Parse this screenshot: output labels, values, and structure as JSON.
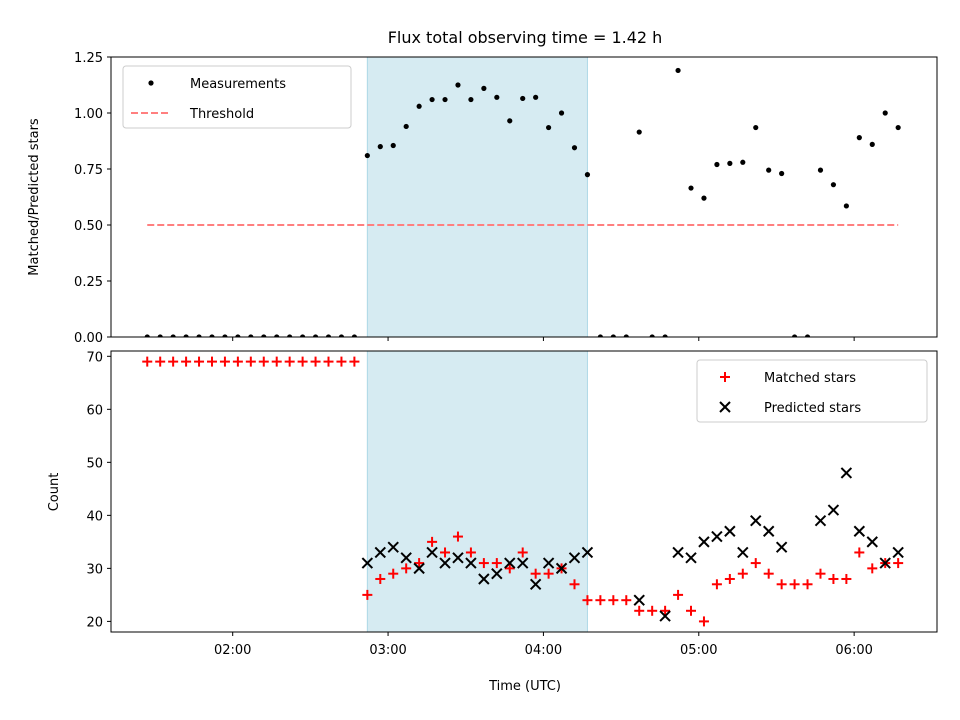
{
  "chart_data": [
    {
      "type": "scatter",
      "title": "Flux total observing time = 1.42 h",
      "xlabel": "",
      "ylabel": "Matched/Predicted stars",
      "xlim": [
        "01:13",
        "06:32"
      ],
      "ylim": [
        0,
        1.25
      ],
      "yticks": [
        0,
        0.25,
        0.5,
        0.75,
        1.0,
        1.25
      ],
      "ytick_labels": [
        "0.00",
        "0.25",
        "0.50",
        "0.75",
        "1.00",
        "1.25"
      ],
      "xticks": [
        "02:00",
        "03:00",
        "04:00",
        "05:00",
        "06:00"
      ],
      "shaded_region": {
        "start": "02:52",
        "end": "04:17",
        "color": "#add8e6"
      },
      "legend": {
        "position": "upper left",
        "entries": [
          "Measurements",
          "Threshold"
        ]
      },
      "series": [
        {
          "name": "Measurements",
          "marker": "dot",
          "color": "#000000",
          "x": [
            "01:27",
            "01:32",
            "01:37",
            "01:42",
            "01:47",
            "01:52",
            "01:57",
            "02:02",
            "02:07",
            "02:12",
            "02:17",
            "02:22",
            "02:27",
            "02:32",
            "02:37",
            "02:42",
            "02:47",
            "02:52",
            "02:57",
            "03:02",
            "03:07",
            "03:12",
            "03:17",
            "03:22",
            "03:27",
            "03:32",
            "03:37",
            "03:42",
            "03:47",
            "03:52",
            "03:57",
            "04:02",
            "04:07",
            "04:12",
            "04:17",
            "04:22",
            "04:27",
            "04:32",
            "04:37",
            "04:42",
            "04:47",
            "04:52",
            "04:57",
            "05:02",
            "05:07",
            "05:12",
            "05:17",
            "05:22",
            "05:27",
            "05:32",
            "05:37",
            "05:42",
            "05:47",
            "05:52",
            "05:57",
            "06:02",
            "06:07",
            "06:12",
            "06:17"
          ],
          "y": [
            0,
            0,
            0,
            0,
            0,
            0,
            0,
            0,
            0,
            0,
            0,
            0,
            0,
            0,
            0,
            0,
            0,
            0.81,
            0.85,
            0.855,
            0.94,
            1.03,
            1.06,
            1.06,
            1.125,
            1.06,
            1.11,
            1.07,
            0.965,
            1.065,
            1.07,
            0.935,
            1.0,
            0.845,
            0.725,
            0,
            0,
            0,
            0.915,
            0,
            0,
            1.19,
            0.665,
            0.62,
            0.77,
            0.775,
            0.78,
            0.935,
            0.745,
            0.73,
            0,
            0,
            0.745,
            0.68,
            0.585,
            0.89,
            0.86,
            1.0,
            0.935
          ]
        },
        {
          "name": "Threshold",
          "style": "dashed",
          "color": "#ff7f7f",
          "x": [
            "01:27",
            "06:17"
          ],
          "y": [
            0.5,
            0.5
          ]
        }
      ]
    },
    {
      "type": "scatter",
      "title": "",
      "xlabel": "Time (UTC)",
      "ylabel": "Count",
      "xlim": [
        "01:13",
        "06:32"
      ],
      "ylim": [
        18,
        71
      ],
      "yticks": [
        20,
        30,
        40,
        50,
        60,
        70
      ],
      "ytick_labels": [
        "20",
        "30",
        "40",
        "50",
        "60",
        "70"
      ],
      "xticks": [
        "02:00",
        "03:00",
        "04:00",
        "05:00",
        "06:00"
      ],
      "xtick_labels": [
        "02:00",
        "03:00",
        "04:00",
        "05:00",
        "06:00"
      ],
      "shaded_region": {
        "start": "02:52",
        "end": "04:17",
        "color": "#add8e6"
      },
      "legend": {
        "position": "upper right",
        "entries": [
          "Matched stars",
          "Predicted stars"
        ]
      },
      "series": [
        {
          "name": "Matched stars",
          "marker": "plus",
          "color": "#ff0000",
          "x": [
            "01:27",
            "01:32",
            "01:37",
            "01:42",
            "01:47",
            "01:52",
            "01:57",
            "02:02",
            "02:07",
            "02:12",
            "02:17",
            "02:22",
            "02:27",
            "02:32",
            "02:37",
            "02:42",
            "02:47",
            "02:52",
            "02:57",
            "03:02",
            "03:07",
            "03:12",
            "03:17",
            "03:22",
            "03:27",
            "03:32",
            "03:37",
            "03:42",
            "03:47",
            "03:52",
            "03:57",
            "04:02",
            "04:07",
            "04:12",
            "04:17",
            "04:22",
            "04:27",
            "04:32",
            "04:37",
            "04:42",
            "04:47",
            "04:52",
            "04:57",
            "05:02",
            "05:07",
            "05:12",
            "05:17",
            "05:22",
            "05:27",
            "05:32",
            "05:37",
            "05:42",
            "05:47",
            "05:52",
            "05:57",
            "06:02",
            "06:07",
            "06:12",
            "06:17"
          ],
          "y": [
            69,
            69,
            69,
            69,
            69,
            69,
            69,
            69,
            69,
            69,
            69,
            69,
            69,
            69,
            69,
            69,
            69,
            25,
            28,
            29,
            30,
            31,
            35,
            33,
            36,
            33,
            31,
            31,
            30,
            33,
            29,
            29,
            30,
            27,
            24,
            24,
            24,
            24,
            22,
            22,
            22,
            25,
            22,
            20,
            27,
            28,
            29,
            31,
            29,
            27,
            27,
            27,
            29,
            28,
            28,
            33,
            30,
            31,
            31
          ]
        },
        {
          "name": "Predicted stars",
          "marker": "x",
          "color": "#000000",
          "x": [
            "02:52",
            "02:57",
            "03:02",
            "03:07",
            "03:12",
            "03:17",
            "03:22",
            "03:27",
            "03:32",
            "03:37",
            "03:42",
            "03:47",
            "03:52",
            "03:57",
            "04:02",
            "04:07",
            "04:12",
            "04:17",
            "04:37",
            "04:47",
            "04:52",
            "04:57",
            "05:02",
            "05:07",
            "05:12",
            "05:17",
            "05:22",
            "05:27",
            "05:32",
            "05:47",
            "05:52",
            "05:57",
            "06:02",
            "06:07",
            "06:12",
            "06:17"
          ],
          "y": [
            31,
            33,
            34,
            32,
            30,
            33,
            31,
            32,
            31,
            28,
            29,
            31,
            31,
            27,
            31,
            30,
            32,
            33,
            24,
            21,
            33,
            32,
            35,
            36,
            37,
            33,
            39,
            37,
            34,
            39,
            41,
            48,
            37,
            35,
            31,
            33
          ]
        }
      ]
    }
  ]
}
